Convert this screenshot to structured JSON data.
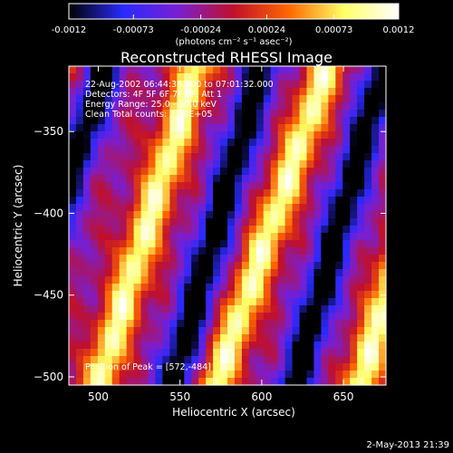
{
  "chart_data": {
    "type": "heatmap",
    "title": "Reconstructed RHESSI Image",
    "xlabel": "Heliocentric X (arcsec)",
    "ylabel": "Heliocentric Y (arcsec)",
    "xlim": [
      482,
      676
    ],
    "ylim": [
      -505,
      -310
    ],
    "x_ticks": [
      500,
      550,
      600,
      650
    ],
    "y_ticks": [
      -350,
      -400,
      -450,
      -500
    ],
    "colorbar": {
      "ticks": [
        "-0.0012",
        "-0.00073",
        "-0.00024",
        "0.00024",
        "0.00073",
        "0.0012"
      ],
      "range": [
        -0.0012,
        0.0012
      ],
      "units": "(photons cm⁻² s⁻¹ asec⁻²)",
      "colormap": [
        "#000000",
        "#2a2aff",
        "#7a1fd0",
        "#c0102a",
        "#ff6600",
        "#ffff66",
        "#ffffff"
      ]
    },
    "annotations": [
      "22-Aug-2002 06:44:36.000 to 07:01:32.000",
      "Detectors: 4F 5F 6F 7F 8F, Att 1",
      "Energy Range: 25.0 - 50.0 keV",
      "Clean     Total counts: 2.38E+05"
    ],
    "peak_label": "Position of Peak = [572,-484]",
    "peak": {
      "x": 572,
      "y": -484
    },
    "footer": "2-May-2013 21:39",
    "stripes": [
      {
        "x_at_top": 470,
        "x_at_bottom": 395,
        "sign": 1
      },
      {
        "x_at_top": 505,
        "x_at_bottom": 440,
        "sign": -1
      },
      {
        "x_at_top": 560,
        "x_at_bottom": 500,
        "sign": 1
      },
      {
        "x_at_top": 600,
        "x_at_bottom": 545,
        "sign": -1
      },
      {
        "x_at_top": 640,
        "x_at_bottom": 572,
        "sign": 1
      },
      {
        "x_at_top": 675,
        "x_at_bottom": 620,
        "sign": -1
      },
      {
        "x_at_top": 720,
        "x_at_bottom": 660,
        "sign": 1
      }
    ]
  }
}
